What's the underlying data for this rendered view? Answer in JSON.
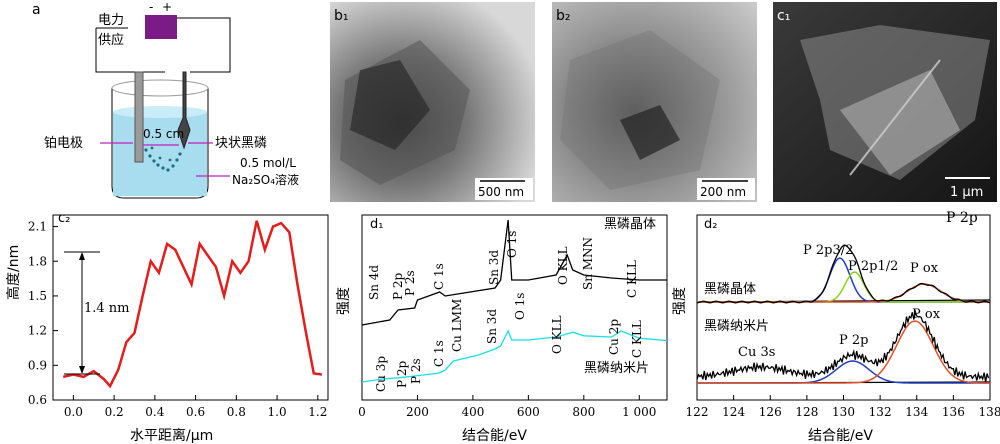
{
  "panel_a": {
    "label": "a",
    "power_label_1": "电力",
    "power_label_2": "供应",
    "minus": "-",
    "plus": "+",
    "distance": "0.5 cm",
    "electrode_label": "铂电极",
    "bp_block_label": "块状黑磷",
    "solution_line1": "0.5 mol/L",
    "solution_line2": "Na₂SO₄溶液",
    "colors": {
      "power": "#7b1c86",
      "water": "#a8ddf0",
      "arrow": "#c020c0",
      "bubbles": "#1a6f80"
    }
  },
  "micro": {
    "b1_label": "b₁",
    "b1_scale": "500 nm",
    "b2_label": "b₂",
    "b2_scale": "200 nm",
    "c1_label": "c₁",
    "c1_scale": "1 μm"
  },
  "panel_c2": {
    "label": "c₂",
    "annotation": "1.4 nm",
    "chart_data": {
      "type": "line",
      "xlabel": "水平距离/μm",
      "ylabel": "高度/nm",
      "xlim": [
        -0.1,
        1.25
      ],
      "ylim": [
        0.6,
        2.2
      ],
      "xticks": [
        "0.0",
        "0.2",
        "0.4",
        "0.6",
        "0.8",
        "1.0",
        "1.2"
      ],
      "yticks": [
        "0.6",
        "0.9",
        "1.2",
        "1.5",
        "1.8",
        "2.1"
      ],
      "color": "#e51c1c",
      "x": [
        -0.05,
        0.0,
        0.05,
        0.1,
        0.15,
        0.18,
        0.22,
        0.26,
        0.3,
        0.34,
        0.38,
        0.42,
        0.46,
        0.5,
        0.54,
        0.58,
        0.62,
        0.66,
        0.7,
        0.74,
        0.78,
        0.82,
        0.86,
        0.9,
        0.94,
        0.98,
        1.02,
        1.06,
        1.1,
        1.14,
        1.18,
        1.22
      ],
      "y": [
        0.8,
        0.82,
        0.8,
        0.85,
        0.78,
        0.72,
        0.86,
        1.1,
        1.18,
        1.5,
        1.8,
        1.7,
        1.95,
        1.9,
        1.75,
        1.6,
        1.95,
        1.85,
        1.75,
        1.5,
        1.8,
        1.7,
        1.8,
        2.15,
        1.9,
        2.1,
        2.13,
        2.05,
        1.6,
        1.2,
        0.83,
        0.82
      ]
    }
  },
  "panel_d1": {
    "label": "d₁",
    "chart_data": {
      "type": "line",
      "xlabel": "结合能/eV",
      "ylabel": "强度",
      "xlim": [
        0,
        1100
      ],
      "xticks": [
        "0",
        "200",
        "400",
        "600",
        "800",
        "1 000"
      ],
      "series": [
        {
          "name": "黑磷晶体",
          "color": "#000000",
          "x": [
            0,
            100,
            130,
            190,
            200,
            280,
            300,
            480,
            500,
            527,
            540,
            600,
            700,
            740,
            760,
            800,
            900,
            1000,
            1100
          ],
          "y": [
            0.55,
            0.6,
            0.7,
            0.72,
            0.8,
            0.88,
            0.84,
            0.92,
            1.0,
            1.6,
            1.0,
            1.0,
            1.05,
            1.25,
            1.1,
            1.05,
            1.02,
            1.0,
            1.0
          ]
        },
        {
          "name": "黑磷纳米片",
          "color": "#18e0e8",
          "x": [
            0,
            75,
            130,
            190,
            280,
            300,
            330,
            420,
            480,
            500,
            527,
            540,
            600,
            700,
            760,
            800,
            900,
            935,
            1000,
            1100
          ],
          "y": [
            0.05,
            0.1,
            0.12,
            0.15,
            0.2,
            0.25,
            0.4,
            0.5,
            0.6,
            0.65,
            0.9,
            0.75,
            0.75,
            0.8,
            0.88,
            0.82,
            0.8,
            0.9,
            0.78,
            0.74
          ]
        }
      ],
      "peak_labels_crystal": [
        "Sn 4d",
        "P 2p",
        "P 2s",
        "C 1s",
        "Sn 3d",
        "O 1s",
        "O KLL",
        "Sn MNN",
        "C KLL"
      ],
      "peak_labels_nano": [
        "Cu 3p",
        "P 2p",
        "P 2s",
        "C 1s",
        "Cu LMM",
        "Sn 3d",
        "O 1s",
        "O KLL",
        "Cu 2p",
        "C KLL"
      ]
    }
  },
  "panel_d2": {
    "label": "d₂",
    "title": "P 2p",
    "chart_data": {
      "type": "line",
      "xlabel": "结合能/eV",
      "ylabel": "强度",
      "xlim": [
        122,
        138
      ],
      "xticks": [
        "122",
        "124",
        "126",
        "128",
        "130",
        "132",
        "134",
        "136",
        "138"
      ],
      "series": [
        {
          "name": "黑磷晶体",
          "peaks": [
            {
              "label": "P 2p3/2",
              "center": 129.8
            },
            {
              "label": "P 2p1/2",
              "center": 130.6
            },
            {
              "label": "P ox",
              "center": 134.4
            }
          ]
        },
        {
          "name": "黑磷纳米片",
          "peaks": [
            {
              "label": "Cu 3s",
              "center": 125.5
            },
            {
              "label": "P 2p",
              "center": 130.5
            },
            {
              "label": "P ox",
              "center": 133.9
            }
          ]
        }
      ],
      "labels": {
        "p2p32": "P 2p3/2",
        "p2p12": "P 2p1/2",
        "pox_top": "P ox",
        "p2p": "P 2p",
        "pox_bottom": "P ox",
        "cu3s": "Cu 3s"
      }
    }
  },
  "series_labels": {
    "crystal": "黑磷晶体",
    "nano": "黑磷纳米片"
  }
}
